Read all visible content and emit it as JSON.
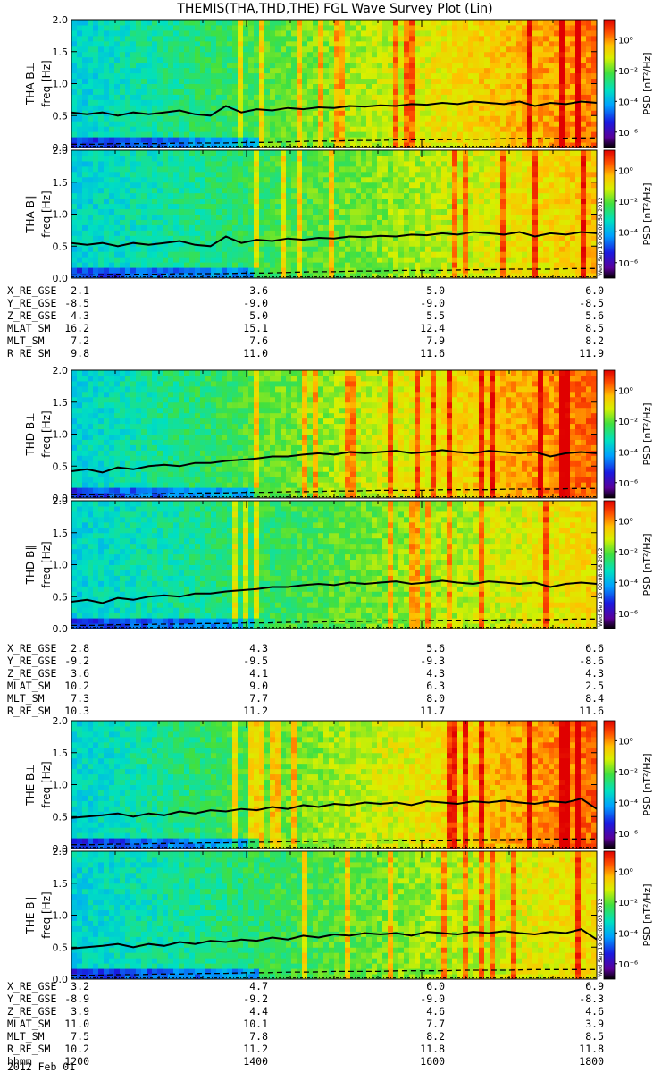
{
  "title": "THEMIS(THA,THD,THE) FGL Wave Survey Plot (Lin)",
  "date_label": "2012 Feb 01",
  "timestamps": [
    "Wed Sep 19 00:08:58 2012",
    "Wed Sep 19 00:08:58 2012",
    "Wed Sep 19 00:09:03 2012"
  ],
  "colorbar": {
    "label": "PSD [nT²/Hz]",
    "ticks": [
      "10⁰",
      "10⁻²",
      "10⁻⁴",
      "10⁻⁶"
    ],
    "tick_exponents": [
      0,
      -2,
      -4,
      -6
    ],
    "range_log10": [
      -7,
      1.3
    ]
  },
  "chart_data": {
    "type": "heatmap",
    "xlabel": "hhmm",
    "x_ticks": [
      "1200",
      "1400",
      "1600",
      "1800"
    ],
    "x_range_hours": [
      12,
      18
    ],
    "ylabel": "freq [Hz]",
    "ylim": [
      0,
      2.0
    ],
    "y_ticks": [
      "0.0",
      "0.5",
      "1.0",
      "1.5",
      "2.0"
    ],
    "panels": [
      {
        "probe": "THA",
        "component": "B⊥",
        "ylabel_prefix": "THA B⊥",
        "intensity_level": 0.85,
        "gyro_curve_hz": [
          0.55,
          0.52,
          0.55,
          0.5,
          0.55,
          0.52,
          0.55,
          0.58,
          0.52,
          0.5,
          0.65,
          0.55,
          0.6,
          0.58,
          0.62,
          0.6,
          0.63,
          0.62,
          0.65,
          0.64,
          0.66,
          0.65,
          0.68,
          0.67,
          0.7,
          0.68,
          0.72,
          0.7,
          0.68,
          0.72,
          0.65,
          0.7,
          0.68,
          0.72,
          0.7
        ],
        "dashed_curve_hz": [
          0.05,
          0.05,
          0.06,
          0.06,
          0.06,
          0.07,
          0.07,
          0.07,
          0.08,
          0.08,
          0.09,
          0.1,
          0.1,
          0.11,
          0.11,
          0.12,
          0.12,
          0.12,
          0.13,
          0.13,
          0.14,
          0.14,
          0.14,
          0.15,
          0.15
        ]
      },
      {
        "probe": "THA",
        "component": "B∥",
        "ylabel_prefix": "THA B∥",
        "intensity_level": 0.7,
        "gyro_curve_hz": [
          0.55,
          0.52,
          0.55,
          0.5,
          0.55,
          0.52,
          0.55,
          0.58,
          0.52,
          0.5,
          0.65,
          0.55,
          0.6,
          0.58,
          0.62,
          0.6,
          0.63,
          0.62,
          0.65,
          0.64,
          0.66,
          0.65,
          0.68,
          0.67,
          0.7,
          0.68,
          0.72,
          0.7,
          0.68,
          0.72,
          0.65,
          0.7,
          0.68,
          0.72,
          0.7
        ],
        "dashed_curve_hz": [
          0.05,
          0.05,
          0.06,
          0.06,
          0.06,
          0.07,
          0.07,
          0.07,
          0.08,
          0.08,
          0.09,
          0.1,
          0.1,
          0.11,
          0.11,
          0.12,
          0.12,
          0.12,
          0.13,
          0.13,
          0.14,
          0.14,
          0.14,
          0.15,
          0.15
        ]
      },
      {
        "probe": "THD",
        "component": "B⊥",
        "ylabel_prefix": "THD B⊥",
        "intensity_level": 0.9,
        "gyro_curve_hz": [
          0.42,
          0.45,
          0.4,
          0.48,
          0.45,
          0.5,
          0.52,
          0.5,
          0.55,
          0.55,
          0.58,
          0.6,
          0.62,
          0.65,
          0.65,
          0.68,
          0.7,
          0.68,
          0.72,
          0.7,
          0.72,
          0.74,
          0.7,
          0.72,
          0.75,
          0.72,
          0.7,
          0.74,
          0.72,
          0.7,
          0.72,
          0.65,
          0.7,
          0.72,
          0.7
        ],
        "dashed_curve_hz": [
          0.05,
          0.05,
          0.06,
          0.06,
          0.07,
          0.07,
          0.08,
          0.08,
          0.09,
          0.09,
          0.1,
          0.1,
          0.11,
          0.11,
          0.12,
          0.12,
          0.12,
          0.13,
          0.13,
          0.13,
          0.14,
          0.14,
          0.14,
          0.15,
          0.15
        ]
      },
      {
        "probe": "THD",
        "component": "B∥",
        "ylabel_prefix": "THD B∥",
        "intensity_level": 0.65,
        "gyro_curve_hz": [
          0.42,
          0.45,
          0.4,
          0.48,
          0.45,
          0.5,
          0.52,
          0.5,
          0.55,
          0.55,
          0.58,
          0.6,
          0.62,
          0.65,
          0.65,
          0.68,
          0.7,
          0.68,
          0.72,
          0.7,
          0.72,
          0.74,
          0.7,
          0.72,
          0.75,
          0.72,
          0.7,
          0.74,
          0.72,
          0.7,
          0.72,
          0.65,
          0.7,
          0.72,
          0.7
        ],
        "dashed_curve_hz": [
          0.05,
          0.05,
          0.06,
          0.06,
          0.07,
          0.07,
          0.08,
          0.08,
          0.09,
          0.09,
          0.1,
          0.1,
          0.11,
          0.11,
          0.12,
          0.12,
          0.12,
          0.13,
          0.13,
          0.13,
          0.14,
          0.14,
          0.14,
          0.15,
          0.15
        ]
      },
      {
        "probe": "THE",
        "component": "B⊥",
        "ylabel_prefix": "THE B⊥",
        "intensity_level": 0.9,
        "gyro_curve_hz": [
          0.48,
          0.5,
          0.52,
          0.55,
          0.5,
          0.55,
          0.52,
          0.58,
          0.55,
          0.6,
          0.58,
          0.62,
          0.6,
          0.65,
          0.62,
          0.68,
          0.65,
          0.7,
          0.68,
          0.72,
          0.7,
          0.72,
          0.68,
          0.74,
          0.72,
          0.7,
          0.74,
          0.72,
          0.75,
          0.72,
          0.7,
          0.74,
          0.72,
          0.78,
          0.62
        ],
        "dashed_curve_hz": [
          0.06,
          0.06,
          0.07,
          0.07,
          0.08,
          0.08,
          0.09,
          0.09,
          0.1,
          0.1,
          0.11,
          0.11,
          0.12,
          0.12,
          0.12,
          0.13,
          0.13,
          0.13,
          0.14,
          0.14,
          0.14,
          0.15,
          0.15,
          0.15,
          0.15
        ]
      },
      {
        "probe": "THE",
        "component": "B∥",
        "ylabel_prefix": "THE B∥",
        "intensity_level": 0.65,
        "gyro_curve_hz": [
          0.48,
          0.5,
          0.52,
          0.55,
          0.5,
          0.55,
          0.52,
          0.58,
          0.55,
          0.6,
          0.58,
          0.62,
          0.6,
          0.65,
          0.62,
          0.68,
          0.65,
          0.7,
          0.68,
          0.72,
          0.7,
          0.72,
          0.68,
          0.74,
          0.72,
          0.7,
          0.74,
          0.72,
          0.75,
          0.72,
          0.7,
          0.74,
          0.72,
          0.78,
          0.62
        ],
        "dashed_curve_hz": [
          0.06,
          0.06,
          0.07,
          0.07,
          0.08,
          0.08,
          0.09,
          0.09,
          0.1,
          0.1,
          0.11,
          0.11,
          0.12,
          0.12,
          0.12,
          0.13,
          0.13,
          0.13,
          0.14,
          0.14,
          0.14,
          0.15,
          0.15,
          0.15,
          0.15
        ]
      }
    ]
  },
  "ephemeris": [
    {
      "probe": "THA",
      "rows": [
        {
          "name": "X_RE_GSE",
          "values": [
            "2.1",
            "3.6",
            "5.0",
            "6.0"
          ]
        },
        {
          "name": "Y_RE_GSE",
          "values": [
            "-8.5",
            "-9.0",
            "-9.0",
            "-8.5"
          ]
        },
        {
          "name": "Z_RE_GSE",
          "values": [
            "4.3",
            "5.0",
            "5.5",
            "5.6"
          ]
        },
        {
          "name": "MLAT_SM",
          "values": [
            "16.2",
            "15.1",
            "12.4",
            "8.5"
          ]
        },
        {
          "name": "MLT_SM",
          "values": [
            "7.2",
            "7.6",
            "7.9",
            "8.2"
          ]
        },
        {
          "name": "R_RE_SM",
          "values": [
            "9.8",
            "11.0",
            "11.6",
            "11.9"
          ]
        }
      ]
    },
    {
      "probe": "THD",
      "rows": [
        {
          "name": "X_RE_GSE",
          "values": [
            "2.8",
            "4.3",
            "5.6",
            "6.6"
          ]
        },
        {
          "name": "Y_RE_GSE",
          "values": [
            "-9.2",
            "-9.5",
            "-9.3",
            "-8.6"
          ]
        },
        {
          "name": "Z_RE_GSE",
          "values": [
            "3.6",
            "4.1",
            "4.3",
            "4.3"
          ]
        },
        {
          "name": "MLAT_SM",
          "values": [
            "10.2",
            "9.0",
            "6.3",
            "2.5"
          ]
        },
        {
          "name": "MLT_SM",
          "values": [
            "7.3",
            "7.7",
            "8.0",
            "8.4"
          ]
        },
        {
          "name": "R_RE_SM",
          "values": [
            "10.3",
            "11.2",
            "11.7",
            "11.6"
          ]
        }
      ]
    },
    {
      "probe": "THE",
      "rows": [
        {
          "name": "X_RE_GSE",
          "values": [
            "3.2",
            "4.7",
            "6.0",
            "6.9"
          ]
        },
        {
          "name": "Y_RE_GSE",
          "values": [
            "-8.9",
            "-9.2",
            "-9.0",
            "-8.3"
          ]
        },
        {
          "name": "Z_RE_GSE",
          "values": [
            "3.9",
            "4.4",
            "4.6",
            "4.6"
          ]
        },
        {
          "name": "MLAT_SM",
          "values": [
            "11.0",
            "10.1",
            "7.7",
            "3.9"
          ]
        },
        {
          "name": "MLT_SM",
          "values": [
            "7.5",
            "7.8",
            "8.2",
            "8.5"
          ]
        },
        {
          "name": "R_RE_SM",
          "values": [
            "10.2",
            "11.2",
            "11.8",
            "11.8"
          ]
        },
        {
          "name": "hhmm",
          "values": [
            "1200",
            "1400",
            "1600",
            "1800"
          ]
        }
      ]
    }
  ]
}
